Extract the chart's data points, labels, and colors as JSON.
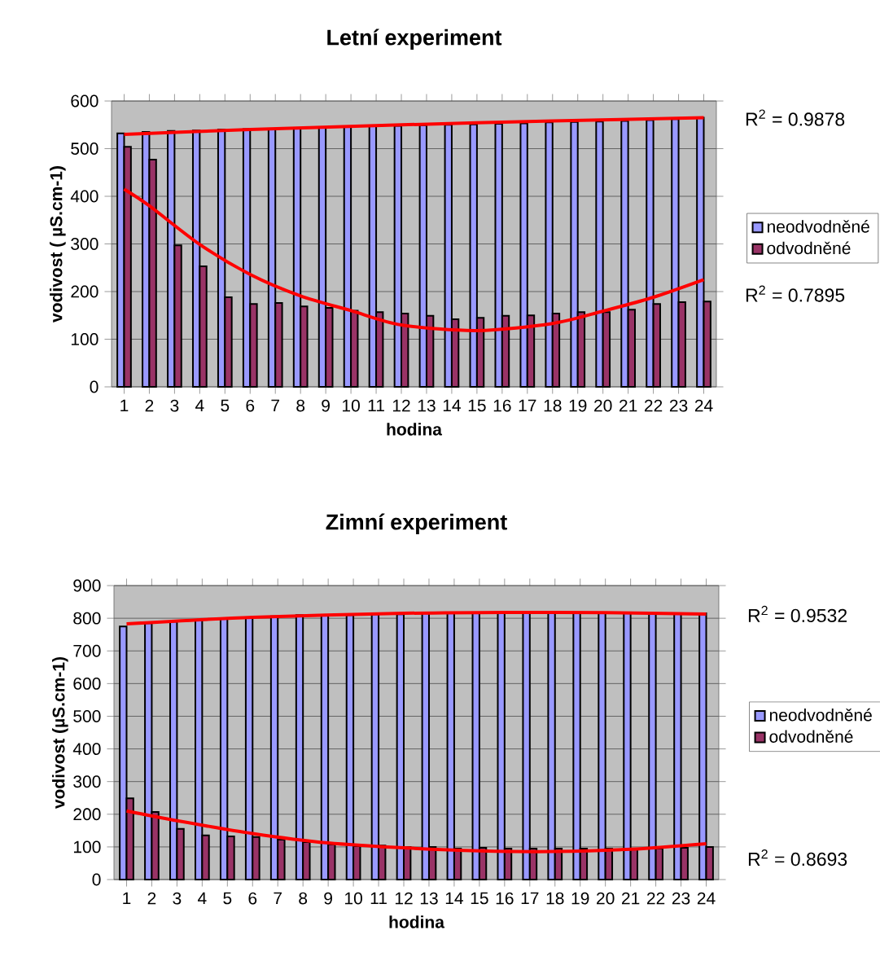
{
  "chart_data": [
    {
      "type": "bar",
      "title": "Letní experiment",
      "xlabel": "hodina",
      "ylabel": "vodivost ( µS.cm-1)",
      "x": [
        1,
        2,
        3,
        4,
        5,
        6,
        7,
        8,
        9,
        10,
        11,
        12,
        13,
        14,
        15,
        16,
        17,
        18,
        19,
        20,
        21,
        22,
        23,
        24
      ],
      "xlim": [
        0.5,
        24.5
      ],
      "xticks": [
        1,
        2,
        3,
        4,
        5,
        6,
        7,
        8,
        9,
        10,
        11,
        12,
        13,
        14,
        15,
        16,
        17,
        18,
        19,
        20,
        21,
        22,
        23,
        24
      ],
      "ylim": [
        0,
        600
      ],
      "yticks": [
        0,
        100,
        200,
        300,
        400,
        500,
        600
      ],
      "grid": "y",
      "legend": "right",
      "series": [
        {
          "name": "neodvodněné",
          "color": "#9999ff",
          "values": [
            532,
            535,
            537,
            538,
            540,
            541,
            542,
            543,
            545,
            546,
            547,
            548,
            549,
            550,
            551,
            552,
            553,
            555,
            556,
            557,
            558,
            560,
            562,
            565
          ]
        },
        {
          "name": "odvodněné",
          "color": "#993366",
          "values": [
            504,
            477,
            297,
            253,
            188,
            174,
            176,
            169,
            166,
            160,
            157,
            154,
            149,
            142,
            145,
            149,
            150,
            154,
            157,
            157,
            162,
            174,
            178,
            179
          ]
        },
        {
          "type": "line",
          "color": "#ff0000",
          "x": [
            1,
            6,
            12,
            18,
            24
          ],
          "values": [
            530,
            540,
            550,
            558,
            565
          ]
        },
        {
          "type": "line",
          "color": "#ff0000",
          "x": [
            1,
            2,
            4,
            6,
            8,
            10,
            12,
            15,
            18,
            20,
            22,
            24
          ],
          "values": [
            415,
            380,
            299,
            236,
            191,
            160,
            130,
            118,
            133,
            159,
            188,
            225
          ]
        }
      ],
      "annotations": [
        "R$^{2}$ = 0.9878",
        "R$^{2}$ = 0.7895"
      ]
    },
    {
      "type": "bar",
      "title": "Zimní experiment",
      "xlabel": "hodina",
      "ylabel": "vodivost (µS.cm-1)",
      "x": [
        1,
        2,
        3,
        4,
        5,
        6,
        7,
        8,
        9,
        10,
        11,
        12,
        13,
        14,
        15,
        16,
        17,
        18,
        19,
        20,
        21,
        22,
        23,
        24
      ],
      "xlim": [
        0.5,
        24.5
      ],
      "xticks": [
        1,
        2,
        3,
        4,
        5,
        6,
        7,
        8,
        9,
        10,
        11,
        12,
        13,
        14,
        15,
        16,
        17,
        18,
        19,
        20,
        21,
        22,
        23,
        24
      ],
      "ylim": [
        0,
        900
      ],
      "yticks": [
        0,
        100,
        200,
        300,
        400,
        500,
        600,
        700,
        800,
        900
      ],
      "grid": "y",
      "legend": "right",
      "series": [
        {
          "name": "neodvodněné",
          "color": "#9999ff",
          "values": [
            775,
            785,
            790,
            795,
            800,
            802,
            806,
            810,
            808,
            810,
            812,
            812,
            815,
            815,
            816,
            815,
            815,
            815,
            815,
            815,
            815,
            815,
            814,
            815
          ]
        },
        {
          "name": "odvodněné",
          "color": "#993366",
          "values": [
            249,
            207,
            155,
            135,
            132,
            130,
            122,
            115,
            108,
            102,
            104,
            100,
            100,
            95,
            97,
            95,
            95,
            95,
            95,
            95,
            95,
            95,
            97,
            100
          ]
        },
        {
          "type": "line",
          "color": "#ff0000",
          "x": [
            1,
            6,
            12,
            16,
            20,
            24
          ],
          "values": [
            783,
            803,
            815,
            818,
            817,
            813
          ]
        },
        {
          "type": "line",
          "color": "#ff0000",
          "x": [
            1,
            3,
            6,
            9,
            12,
            15,
            18,
            21,
            24
          ],
          "values": [
            210,
            180,
            141,
            112,
            97,
            88,
            86,
            93,
            110
          ]
        }
      ],
      "annotations": [
        "R$^{2}$ = 0.9532",
        "R$^{2}$ = 0.8693"
      ]
    }
  ]
}
